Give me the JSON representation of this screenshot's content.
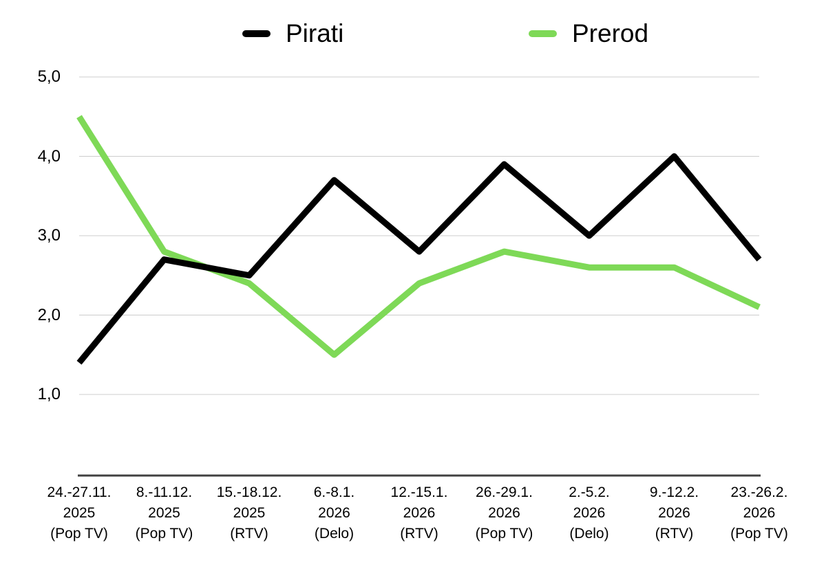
{
  "chart_data": {
    "type": "line",
    "title": "",
    "legend_position": "top",
    "grid": true,
    "background_color": "#ffffff",
    "grid_color": "#cccccc",
    "axis_color": "#404040",
    "ylim": [
      1.0,
      5.0
    ],
    "yticks": [
      "5,0",
      "4,0",
      "3,0",
      "2,0",
      "1,0"
    ],
    "ytick_values": [
      5.0,
      4.0,
      3.0,
      2.0,
      1.0
    ],
    "categories": [
      [
        "24.-27.11.",
        "2025",
        "(Pop TV)"
      ],
      [
        "8.-11.12.",
        "2025",
        "(Pop TV)"
      ],
      [
        "15.-18.12.",
        "2025",
        "(RTV)"
      ],
      [
        "6.-8.1.",
        "2026",
        "(Delo)"
      ],
      [
        "12.-15.1.",
        "2026",
        "(RTV)"
      ],
      [
        "26.-29.1.",
        "2026",
        "(Pop TV)"
      ],
      [
        "2.-5.2.",
        "2026",
        "(Delo)"
      ],
      [
        "9.-12.2.",
        "2026",
        "(RTV)"
      ],
      [
        "23.-26.2.",
        "2026",
        "(Pop TV)"
      ]
    ],
    "series": [
      {
        "name": "Pirati",
        "color": "#000000",
        "values": [
          1.4,
          2.7,
          2.5,
          3.7,
          2.8,
          3.9,
          3.0,
          4.0,
          2.7
        ]
      },
      {
        "name": "Prerod",
        "color": "#7ED957",
        "values": [
          4.5,
          2.8,
          2.4,
          1.5,
          2.4,
          2.8,
          2.6,
          2.6,
          2.1
        ]
      }
    ]
  }
}
